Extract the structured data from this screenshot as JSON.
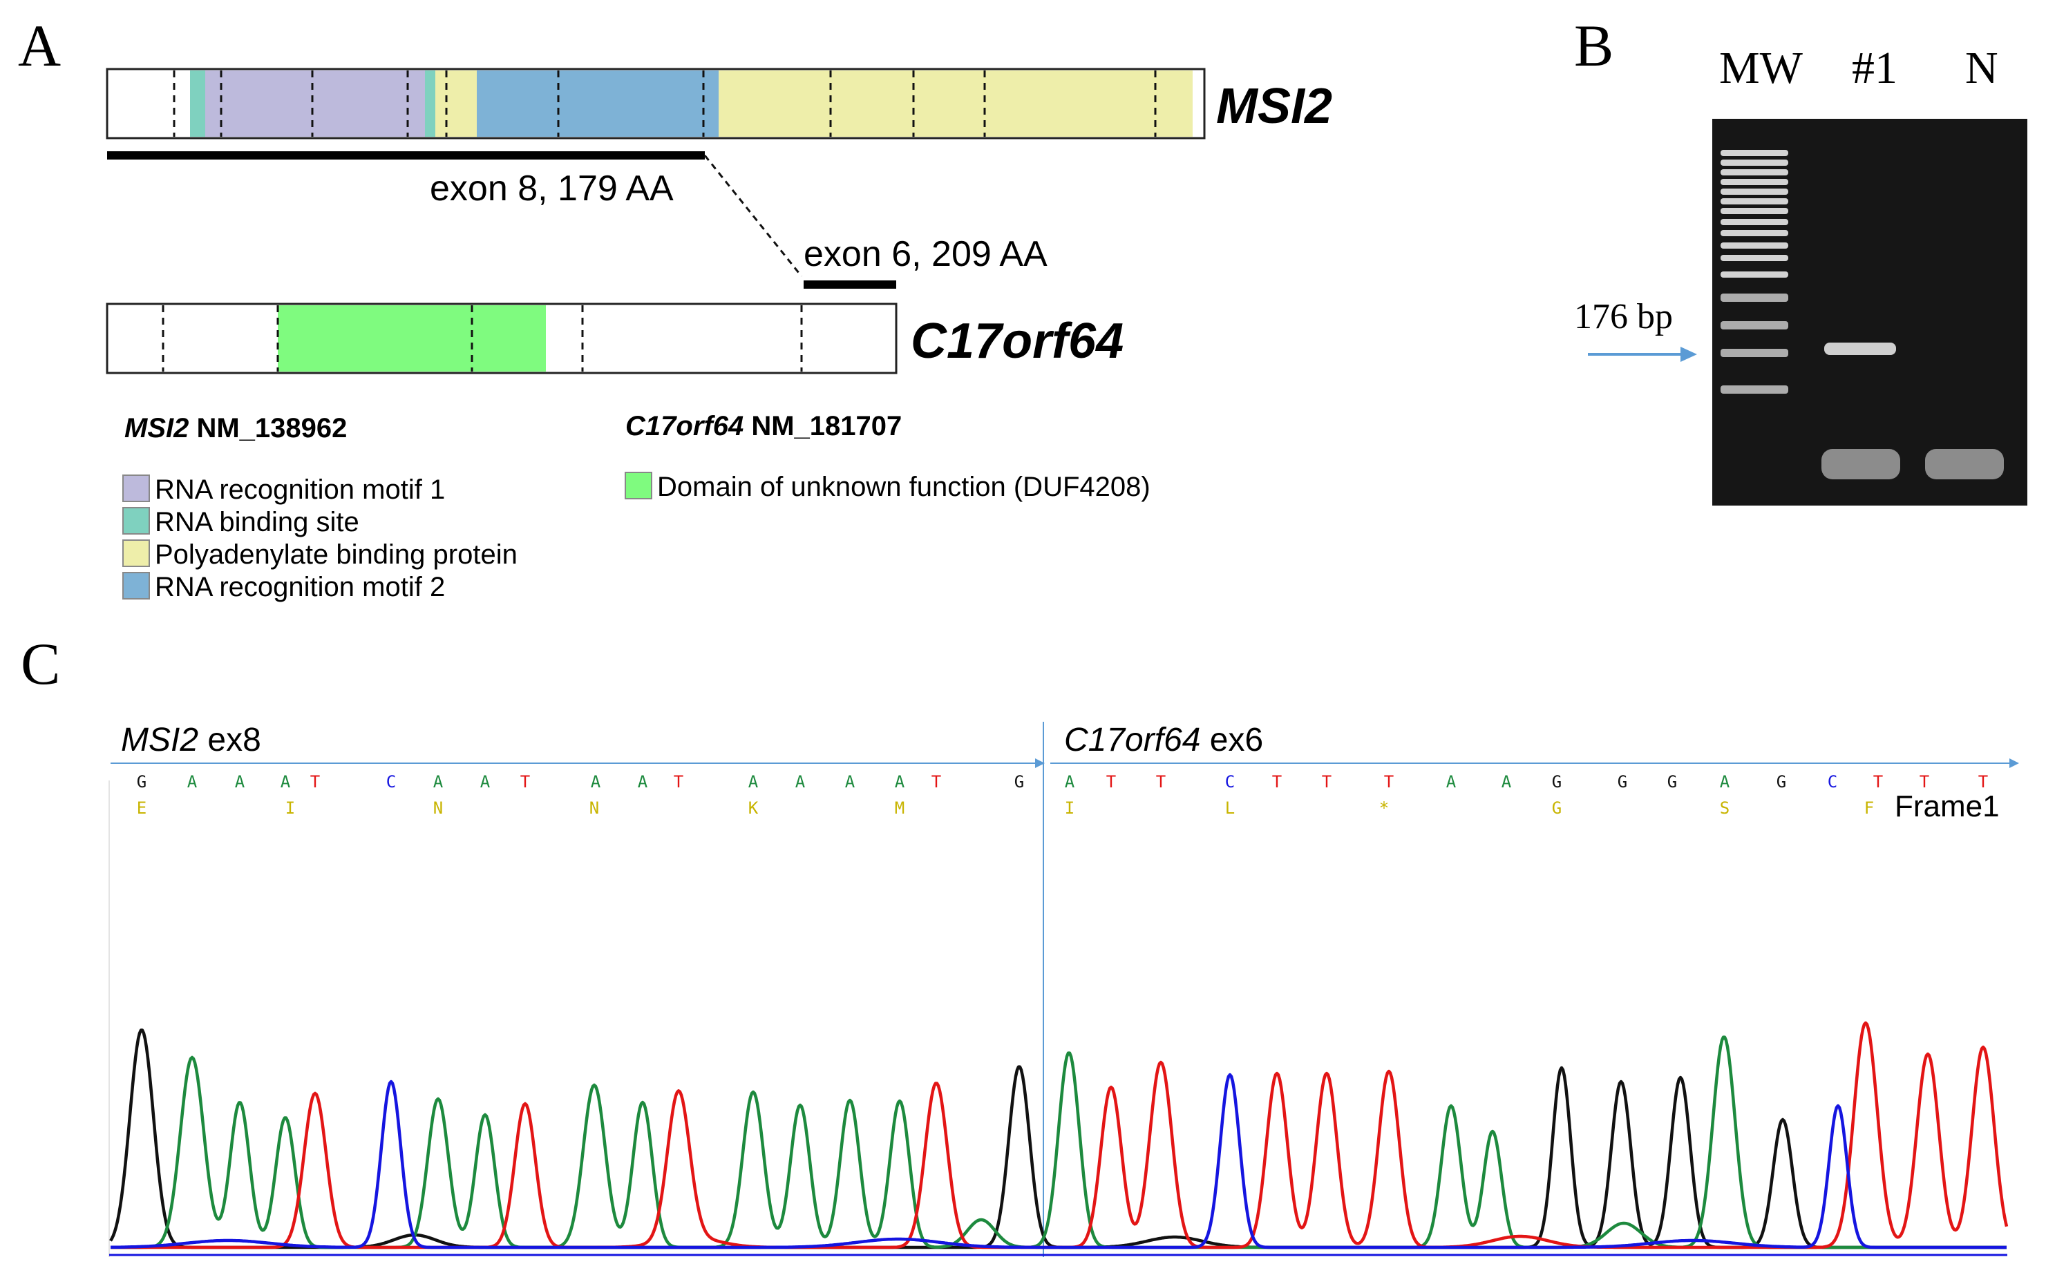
{
  "colors": {
    "rrm1": "#bdbadc",
    "rna_binding": "#7fd1bf",
    "polyA": "#eeeeaa",
    "rrm2": "#7eb2d6",
    "duf": "#7ffb7f",
    "base_A": "#1d8a3e",
    "base_C": "#1515e0",
    "base_G": "#111111",
    "base_T": "#e31515",
    "aa_text": "#c8b400",
    "axis_arrow": "#5b9bd5",
    "gel_bg": "#161616"
  },
  "panel_a": {
    "label": "A",
    "msi2_name": "MSI2",
    "c17_name": "C17orf64",
    "exon8_label": "exon 8, 179 AA",
    "exon6_label": "exon 6, 209 AA",
    "msi2_ref_gene": "MSI2",
    "msi2_ref_acc": " NM_138962",
    "c17_ref_gene": "C17orf64",
    "c17_ref_acc": " NM_181707",
    "legend_msi2": [
      {
        "label": "RNA recognition motif 1",
        "color_key": "rrm1"
      },
      {
        "label": "RNA binding site",
        "color_key": "rna_binding"
      },
      {
        "label": "Polyadenylate binding protein",
        "color_key": "polyA"
      },
      {
        "label": "RNA recognition motif 2",
        "color_key": "rrm2"
      }
    ],
    "legend_c17": [
      {
        "label": "Domain of unknown function (DUF4208)",
        "color_key": "duf"
      }
    ]
  },
  "panel_b": {
    "label": "B",
    "lane_labels": [
      "MW",
      "#1",
      "N"
    ],
    "band_label": "176 bp"
  },
  "panel_c": {
    "label": "C",
    "left_gene": "MSI2",
    "left_exon": " ex8",
    "right_gene": "C17orf64",
    "right_exon": " ex6",
    "frame_label": "Frame1",
    "bases_left": [
      "G",
      "A",
      "A",
      "A",
      "T",
      "C",
      "A",
      "A",
      "T",
      "A",
      "A",
      "T",
      "A",
      "A",
      "A",
      "A",
      "T",
      "G"
    ],
    "bases_right": [
      "A",
      "T",
      "T",
      "C",
      "T",
      "T",
      "T",
      "A",
      "A",
      "G",
      "G",
      "G",
      "A",
      "G",
      "C",
      "T",
      "T",
      "T"
    ],
    "aa_left": [
      "E",
      "I",
      "N",
      "N",
      "K",
      "M"
    ],
    "aa_right": [
      "I",
      "L",
      "*",
      "G",
      "S",
      "F"
    ]
  }
}
